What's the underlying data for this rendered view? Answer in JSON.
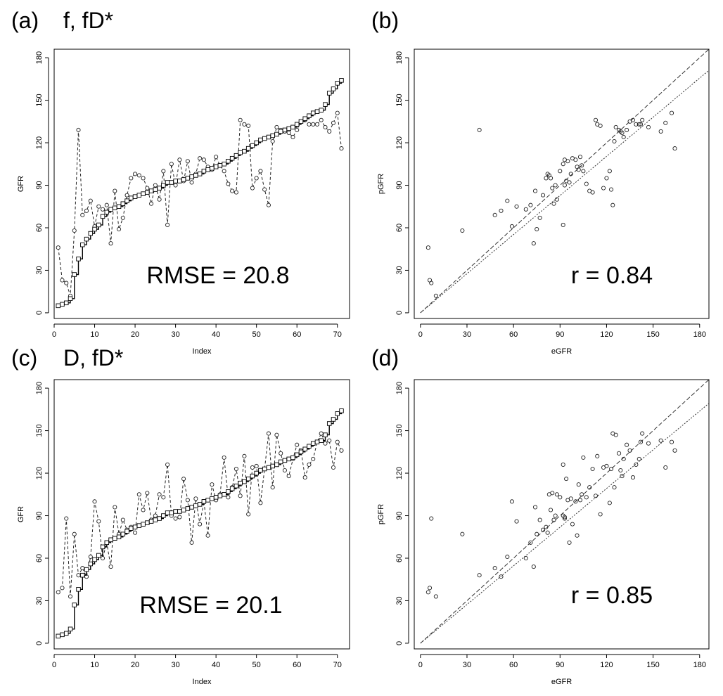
{
  "chart_data": [
    {
      "id": "a",
      "type": "line",
      "panel_label": "(a)",
      "title": "f, fD*",
      "xlabel": "Index",
      "ylabel": "GFR",
      "xlim": [
        0,
        73
      ],
      "ylim": [
        -4,
        186
      ],
      "xticks": [
        0,
        10,
        20,
        30,
        40,
        50,
        60,
        70
      ],
      "yticks": [
        0,
        30,
        60,
        90,
        120,
        150,
        180
      ],
      "annotation": "RMSE = 20.8",
      "series": [
        {
          "style": "dashed-circle",
          "x": [
            1,
            2,
            3,
            4,
            5,
            6,
            7,
            8,
            9,
            10,
            11,
            12,
            13,
            14,
            15,
            16,
            17,
            18,
            19,
            20,
            21,
            22,
            23,
            24,
            25,
            26,
            27,
            28,
            29,
            30,
            31,
            32,
            33,
            34,
            35,
            36,
            37,
            38,
            39,
            40,
            41,
            42,
            43,
            44,
            45,
            46,
            47,
            48,
            49,
            50,
            51,
            52,
            53,
            54,
            55,
            56,
            57,
            58,
            59,
            60,
            61,
            62,
            63,
            64,
            65,
            66,
            67,
            68,
            69,
            70,
            71
          ],
          "values": [
            46,
            23,
            21,
            12,
            58,
            129,
            69,
            72,
            79,
            61,
            75,
            73,
            76,
            49,
            86,
            59,
            67,
            83,
            95,
            98,
            97,
            95,
            88,
            77,
            90,
            80,
            100,
            62,
            105,
            90,
            108,
            93,
            107,
            92,
            98,
            109,
            108,
            103,
            101,
            110,
            104,
            100,
            91,
            86,
            85,
            136,
            133,
            132,
            88,
            95,
            100,
            87,
            76,
            121,
            131,
            129,
            128,
            127,
            124,
            129,
            135,
            136,
            133,
            133,
            133,
            136,
            131,
            128,
            134,
            141,
            116
          ]
        },
        {
          "style": "solid-square-step",
          "x": [
            1,
            2,
            3,
            4,
            5,
            6,
            7,
            8,
            9,
            10,
            11,
            12,
            13,
            14,
            15,
            16,
            17,
            18,
            19,
            20,
            21,
            22,
            23,
            24,
            25,
            26,
            27,
            28,
            29,
            30,
            31,
            32,
            33,
            34,
            35,
            36,
            37,
            38,
            39,
            40,
            41,
            42,
            43,
            44,
            45,
            46,
            47,
            48,
            49,
            50,
            51,
            52,
            53,
            54,
            55,
            56,
            57,
            58,
            59,
            60,
            61,
            62,
            63,
            64,
            65,
            66,
            67,
            68,
            69,
            70,
            71
          ],
          "values": [
            5,
            6,
            7,
            10,
            27,
            38,
            48,
            52,
            56,
            59,
            62,
            68,
            71,
            73,
            74,
            75,
            77,
            79,
            81,
            82,
            83,
            84,
            85,
            86,
            87,
            88,
            90,
            92,
            92,
            93,
            93,
            94,
            95,
            96,
            97,
            98,
            100,
            101,
            102,
            103,
            104,
            105,
            107,
            109,
            111,
            113,
            114,
            116,
            118,
            120,
            122,
            123,
            124,
            125,
            126,
            128,
            129,
            130,
            131,
            133,
            135,
            137,
            139,
            141,
            142,
            143,
            147,
            155,
            158,
            162,
            164
          ]
        }
      ]
    },
    {
      "id": "b",
      "type": "scatter",
      "panel_label": "(b)",
      "title": "",
      "xlabel": "eGFR",
      "ylabel": "pGFR",
      "xlim": [
        -4,
        186
      ],
      "ylim": [
        -4,
        186
      ],
      "xticks": [
        0,
        30,
        60,
        90,
        120,
        150,
        180
      ],
      "yticks": [
        0,
        30,
        60,
        90,
        120,
        150,
        180
      ],
      "annotation": "r = 0.84",
      "lines": [
        {
          "style": "dashed",
          "slope": 1.0,
          "intercept": 0
        },
        {
          "style": "dotted",
          "slope": 0.92,
          "intercept": 0
        }
      ],
      "points": {
        "x": [
          5,
          6,
          7,
          10,
          27,
          38,
          48,
          52,
          56,
          59,
          62,
          68,
          71,
          73,
          74,
          75,
          77,
          79,
          81,
          82,
          83,
          84,
          85,
          86,
          87,
          88,
          90,
          92,
          92,
          93,
          93,
          94,
          95,
          96,
          97,
          98,
          100,
          101,
          102,
          103,
          104,
          105,
          107,
          109,
          111,
          113,
          114,
          116,
          118,
          120,
          122,
          123,
          124,
          125,
          126,
          128,
          129,
          130,
          131,
          133,
          135,
          137,
          139,
          141,
          142,
          143,
          147,
          155,
          158,
          162,
          164
        ],
        "y": [
          46,
          23,
          21,
          12,
          58,
          129,
          69,
          72,
          79,
          61,
          75,
          73,
          76,
          49,
          86,
          59,
          67,
          83,
          95,
          98,
          97,
          95,
          88,
          77,
          90,
          80,
          100,
          62,
          105,
          90,
          108,
          93,
          107,
          92,
          98,
          109,
          108,
          103,
          101,
          110,
          104,
          100,
          91,
          86,
          85,
          136,
          133,
          132,
          88,
          95,
          100,
          87,
          76,
          121,
          131,
          129,
          128,
          127,
          124,
          129,
          135,
          136,
          133,
          133,
          133,
          136,
          131,
          128,
          134,
          141,
          116
        ]
      }
    },
    {
      "id": "c",
      "type": "line",
      "panel_label": "(c)",
      "title": "D, fD*",
      "xlabel": "Index",
      "ylabel": "GFR",
      "xlim": [
        0,
        73
      ],
      "ylim": [
        -4,
        186
      ],
      "xticks": [
        0,
        10,
        20,
        30,
        40,
        50,
        60,
        70
      ],
      "yticks": [
        0,
        30,
        60,
        90,
        120,
        150,
        180
      ],
      "annotation": "RMSE = 20.1",
      "series": [
        {
          "style": "dashed-circle",
          "x": [
            1,
            2,
            3,
            4,
            5,
            6,
            7,
            8,
            9,
            10,
            11,
            12,
            13,
            14,
            15,
            16,
            17,
            18,
            19,
            20,
            21,
            22,
            23,
            24,
            25,
            26,
            27,
            28,
            29,
            30,
            31,
            32,
            33,
            34,
            35,
            36,
            37,
            38,
            39,
            40,
            41,
            42,
            43,
            44,
            45,
            46,
            47,
            48,
            49,
            50,
            51,
            52,
            53,
            54,
            55,
            56,
            57,
            58,
            59,
            60,
            61,
            62,
            63,
            64,
            65,
            66,
            67,
            68,
            69,
            70,
            71
          ],
          "values": [
            36,
            39,
            88,
            33,
            77,
            48,
            53,
            47,
            61,
            100,
            86,
            60,
            71,
            54,
            96,
            77,
            87,
            80,
            82,
            78,
            105,
            94,
            106,
            87,
            90,
            105,
            103,
            126,
            90,
            88,
            89,
            116,
            101,
            71,
            102,
            84,
            100,
            76,
            112,
            101,
            105,
            131,
            103,
            110,
            123,
            104,
            132,
            91,
            124,
            125,
            99,
            123,
            148,
            110,
            147,
            134,
            122,
            118,
            130,
            140,
            136,
            117,
            126,
            130,
            142,
            148,
            141,
            143,
            124,
            142,
            136
          ]
        },
        {
          "style": "solid-square-step",
          "x": [
            1,
            2,
            3,
            4,
            5,
            6,
            7,
            8,
            9,
            10,
            11,
            12,
            13,
            14,
            15,
            16,
            17,
            18,
            19,
            20,
            21,
            22,
            23,
            24,
            25,
            26,
            27,
            28,
            29,
            30,
            31,
            32,
            33,
            34,
            35,
            36,
            37,
            38,
            39,
            40,
            41,
            42,
            43,
            44,
            45,
            46,
            47,
            48,
            49,
            50,
            51,
            52,
            53,
            54,
            55,
            56,
            57,
            58,
            59,
            60,
            61,
            62,
            63,
            64,
            65,
            66,
            67,
            68,
            69,
            70,
            71
          ],
          "values": [
            5,
            6,
            7,
            10,
            27,
            38,
            48,
            52,
            56,
            59,
            62,
            68,
            71,
            73,
            74,
            75,
            77,
            79,
            81,
            82,
            83,
            84,
            85,
            86,
            87,
            88,
            90,
            92,
            92,
            93,
            93,
            94,
            95,
            96,
            97,
            98,
            100,
            101,
            102,
            103,
            104,
            105,
            107,
            109,
            111,
            113,
            114,
            116,
            118,
            120,
            122,
            123,
            124,
            125,
            126,
            128,
            129,
            130,
            131,
            133,
            135,
            137,
            139,
            141,
            142,
            143,
            147,
            155,
            158,
            162,
            164
          ]
        }
      ]
    },
    {
      "id": "d",
      "type": "scatter",
      "panel_label": "(d)",
      "title": "",
      "xlabel": "eGFR",
      "ylabel": "pGFR",
      "xlim": [
        -4,
        186
      ],
      "ylim": [
        -4,
        186
      ],
      "xticks": [
        0,
        30,
        60,
        90,
        120,
        150,
        180
      ],
      "yticks": [
        0,
        30,
        60,
        90,
        120,
        150,
        180
      ],
      "annotation": "r = 0.85",
      "lines": [
        {
          "style": "dashed",
          "slope": 1.0,
          "intercept": 0
        },
        {
          "style": "dotted",
          "slope": 0.91,
          "intercept": 0
        }
      ],
      "points": {
        "x": [
          5,
          6,
          7,
          10,
          27,
          38,
          48,
          52,
          56,
          59,
          62,
          68,
          71,
          73,
          74,
          75,
          77,
          79,
          81,
          82,
          83,
          84,
          85,
          86,
          87,
          88,
          90,
          92,
          92,
          93,
          93,
          94,
          95,
          96,
          97,
          98,
          100,
          101,
          102,
          103,
          104,
          105,
          107,
          109,
          111,
          113,
          114,
          116,
          118,
          120,
          122,
          123,
          124,
          125,
          126,
          128,
          129,
          130,
          131,
          133,
          135,
          137,
          139,
          141,
          142,
          143,
          147,
          155,
          158,
          162,
          164
        ],
        "y": [
          36,
          39,
          88,
          33,
          77,
          48,
          53,
          47,
          61,
          100,
          86,
          60,
          71,
          54,
          96,
          77,
          87,
          80,
          82,
          78,
          105,
          94,
          106,
          87,
          90,
          105,
          103,
          126,
          90,
          88,
          89,
          116,
          101,
          71,
          102,
          84,
          100,
          76,
          112,
          101,
          105,
          131,
          103,
          110,
          123,
          104,
          132,
          91,
          124,
          125,
          99,
          123,
          148,
          110,
          147,
          134,
          122,
          118,
          130,
          140,
          136,
          117,
          126,
          130,
          142,
          148,
          141,
          143,
          124,
          142,
          136
        ]
      }
    }
  ]
}
